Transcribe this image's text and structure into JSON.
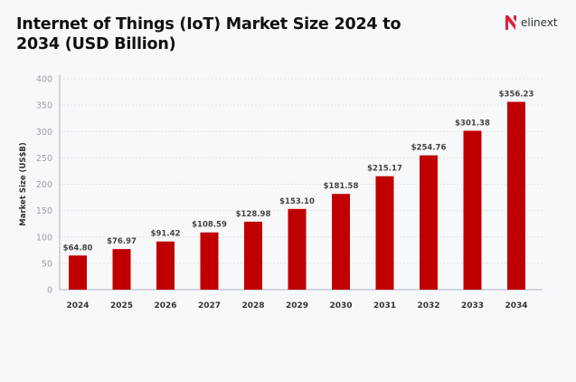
{
  "brand": {
    "name": "elinext",
    "accent": "#c00000"
  },
  "chart_data": {
    "type": "bar",
    "title": "Internet of Things (IoT) Market Size 2024 to 2034 (USD Billion)",
    "xlabel": "",
    "ylabel": "Market Size (US$B)",
    "ylim": [
      0,
      400
    ],
    "yticks": [
      0,
      50,
      100,
      150,
      200,
      250,
      300,
      350,
      400
    ],
    "grid": true,
    "categories": [
      "2024",
      "2025",
      "2026",
      "2027",
      "2028",
      "2029",
      "2030",
      "2031",
      "2032",
      "2033",
      "2034"
    ],
    "values": [
      64.8,
      76.97,
      91.42,
      108.59,
      128.98,
      153.1,
      181.58,
      215.17,
      254.76,
      301.38,
      356.23
    ],
    "data_labels": [
      "$64.80",
      "$76.97",
      "$91.42",
      "$108.59",
      "$128.98",
      "$153.10",
      "$181.58",
      "$215.17",
      "$254.76",
      "$301.38",
      "$356.23"
    ],
    "bar_color": "#c00000"
  }
}
